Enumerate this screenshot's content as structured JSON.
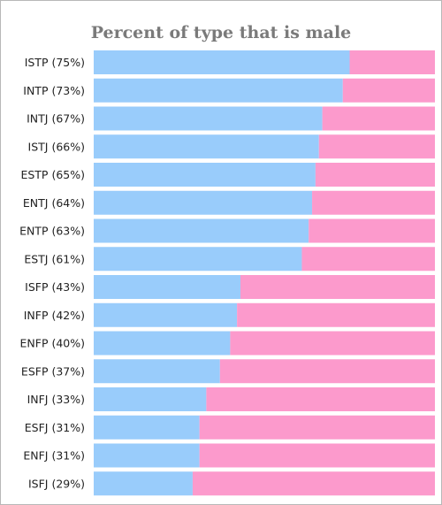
{
  "chart_data": {
    "type": "bar",
    "stacked": true,
    "orientation": "horizontal",
    "title": "Percent of type that is male",
    "categories": [
      "ISTP",
      "INTP",
      "INTJ",
      "ISTJ",
      "ESTP",
      "ENTJ",
      "ENTP",
      "ESTJ",
      "ISFP",
      "INFP",
      "ENFP",
      "ESFP",
      "INFJ",
      "ESFJ",
      "ENFJ",
      "ISFJ"
    ],
    "labels": [
      "ISTP (75%)",
      "INTP (73%)",
      "INTJ (67%)",
      "ISTJ (66%)",
      "ESTP (65%)",
      "ENTJ (64%)",
      "ENTP (63%)",
      "ESTJ (61%)",
      "ISFP (43%)",
      "INFP (42%)",
      "ENFP (40%)",
      "ESFP (37%)",
      "INFJ (33%)",
      "ESFJ (31%)",
      "ENFJ (31%)",
      "ISFJ (29%)"
    ],
    "series": [
      {
        "values": [
          75,
          73,
          67,
          66,
          65,
          64,
          63,
          61,
          43,
          42,
          40,
          37,
          33,
          31,
          31,
          29
        ]
      },
      {
        "values": [
          25,
          27,
          33,
          34,
          35,
          36,
          37,
          39,
          57,
          58,
          60,
          63,
          67,
          69,
          69,
          71
        ]
      }
    ],
    "xlim": [
      0,
      100
    ],
    "grid": false,
    "legend": "none",
    "colors": {
      "male": "#99ccfb",
      "female": "#fc9acc"
    }
  }
}
